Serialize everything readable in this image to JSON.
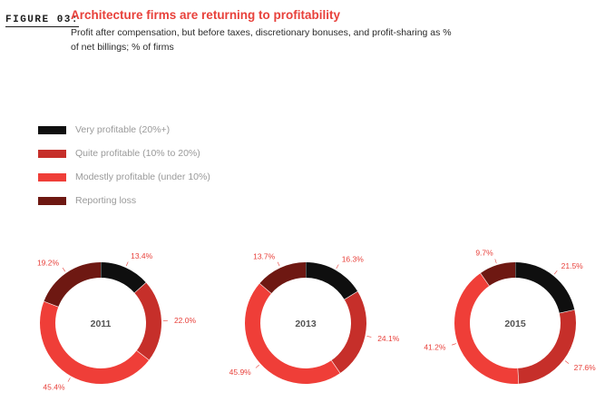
{
  "header": {
    "figure_label": "FIGURE 03:",
    "title": "Architecture firms are returning to profitability",
    "subtitle": "Profit after compensation, but before taxes, discretionary bonuses, and profit-sharing as % of net billings; % of firms"
  },
  "colors": {
    "very": "#0f0f0f",
    "quite": "#c62f2a",
    "modest": "#ef3e38",
    "loss": "#6e1812",
    "label": "#e8413b"
  },
  "chart_data": {
    "type": "pie",
    "style": "donut",
    "legend": [
      "Very profitable (20%+)",
      "Quite profitable (10% to 20%)",
      "Modestly profitable (under 10%)",
      "Reporting loss"
    ],
    "series_colors": [
      "#0f0f0f",
      "#c62f2a",
      "#ef3e38",
      "#6e1812"
    ],
    "charts": [
      {
        "year": "2011",
        "values": [
          13.4,
          22.0,
          45.4,
          19.2
        ],
        "labels": [
          "13.4%",
          "22.0%",
          "45.4%",
          "19.2%"
        ]
      },
      {
        "year": "2013",
        "values": [
          16.3,
          24.1,
          45.9,
          13.7
        ],
        "labels": [
          "16.3%",
          "24.1%",
          "45.9%",
          "13.7%"
        ]
      },
      {
        "year": "2015",
        "values": [
          21.5,
          27.6,
          41.2,
          9.7
        ],
        "labels": [
          "21.5%",
          "27.6%",
          "41.2%",
          "9.7%"
        ]
      }
    ]
  }
}
